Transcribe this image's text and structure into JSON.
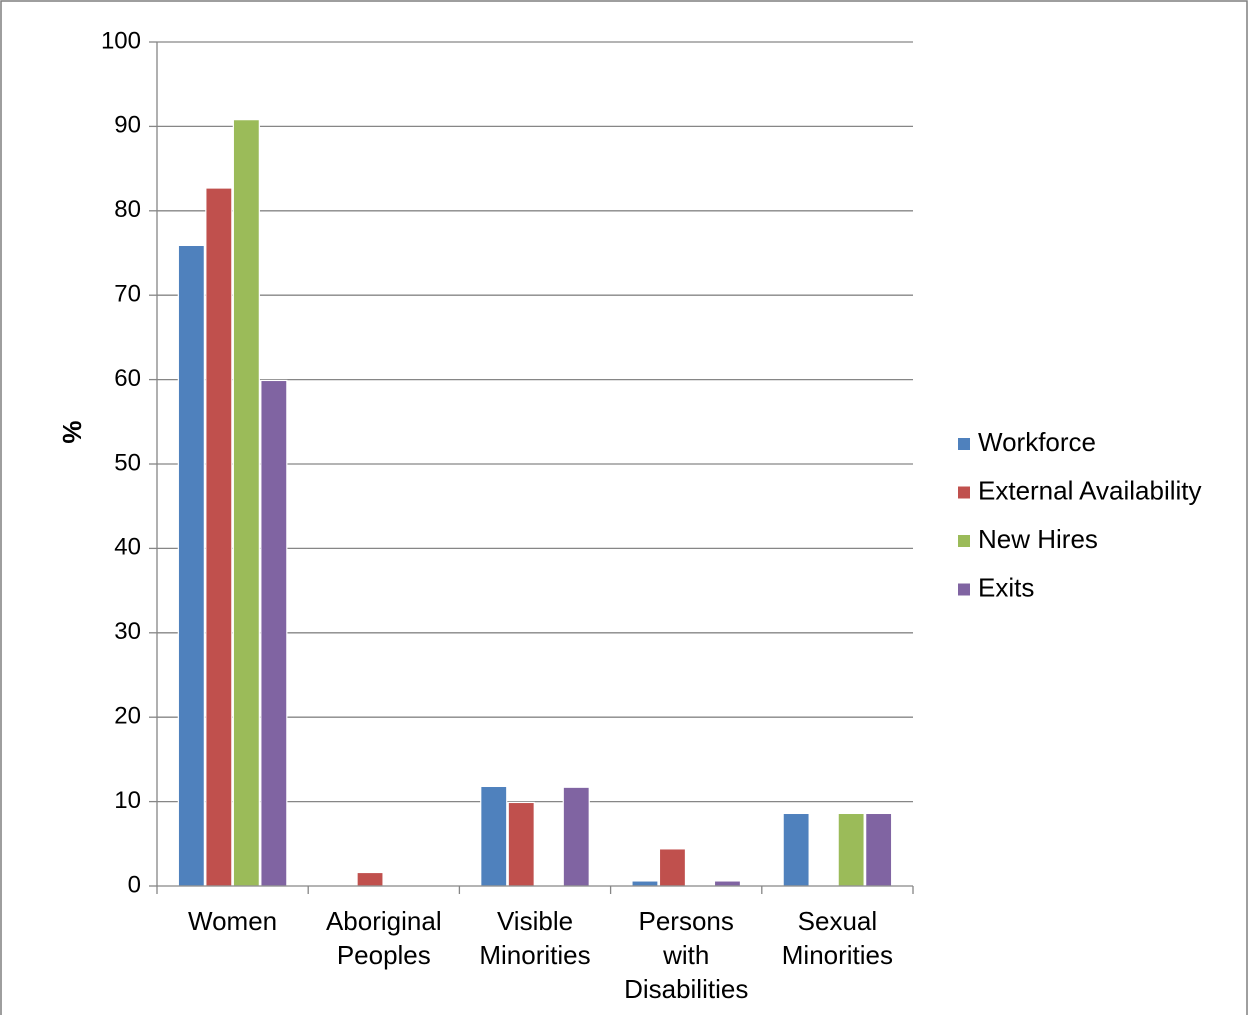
{
  "chart_data": {
    "type": "bar",
    "title": "",
    "xlabel": "",
    "ylabel": "%",
    "ylim": [
      0,
      100
    ],
    "yticks": [
      "0",
      "10",
      "20",
      "30",
      "40",
      "50",
      "60",
      "70",
      "80",
      "90",
      "100"
    ],
    "grid": true,
    "legend_position": "right",
    "categories": [
      [
        "Women"
      ],
      [
        "Aboriginal",
        "Peoples"
      ],
      [
        "Visible",
        "Minorities"
      ],
      [
        "Persons",
        "with",
        "Disabilities"
      ],
      [
        "Sexual",
        "Minorities"
      ]
    ],
    "series": [
      {
        "name": "Workforce",
        "color": "#4F81BD",
        "values": [
          75.9,
          0,
          11.8,
          0.6,
          8.6
        ]
      },
      {
        "name": "External Availability",
        "color": "#C0504D",
        "values": [
          82.7,
          1.6,
          9.9,
          4.4,
          0
        ]
      },
      {
        "name": "New Hires",
        "color": "#9BBB59",
        "values": [
          90.8,
          0,
          0,
          0,
          8.6
        ]
      },
      {
        "name": "Exits",
        "color": "#8064A2",
        "values": [
          59.9,
          0,
          11.7,
          0.6,
          8.6
        ]
      }
    ]
  }
}
